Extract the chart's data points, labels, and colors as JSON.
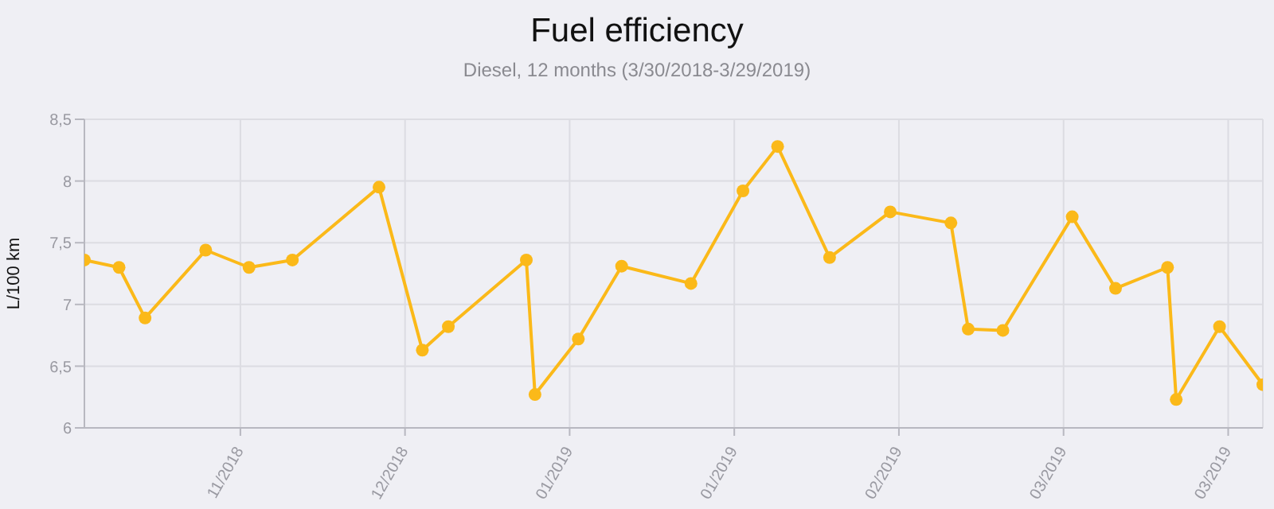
{
  "chart_data": {
    "type": "line",
    "title": "Fuel efficiency",
    "subtitle": "Diesel, 12 months (3/30/2018-3/29/2019)",
    "ylabel": "L/100 km",
    "x": [
      "2018-11-12",
      "2018-11-16",
      "2018-11-19",
      "2018-11-26",
      "2018-12-01",
      "2018-12-06",
      "2018-12-16",
      "2018-12-21",
      "2018-12-24",
      "2019-01-02",
      "2019-01-03",
      "2019-01-08",
      "2019-01-13",
      "2019-01-21",
      "2019-01-27",
      "2019-01-31",
      "2019-02-06",
      "2019-02-13",
      "2019-02-20",
      "2019-02-22",
      "2019-02-26",
      "2019-03-06",
      "2019-03-11",
      "2019-03-17",
      "2019-03-18",
      "2019-03-23",
      "2019-03-28"
    ],
    "series": [
      {
        "color": "#fbb919",
        "values": [
          7.36,
          7.3,
          6.89,
          7.44,
          7.3,
          7.36,
          7.95,
          6.63,
          6.82,
          7.36,
          6.27,
          6.72,
          7.31,
          7.17,
          7.92,
          8.28,
          7.38,
          7.75,
          7.66,
          6.8,
          6.79,
          7.71,
          7.13,
          7.3,
          6.23,
          6.82,
          6.35
        ]
      }
    ],
    "xlim": [
      "2018-11-12",
      "2019-03-28"
    ],
    "xticks": [
      {
        "value": "2018-11-30",
        "label": "11/2018"
      },
      {
        "value": "2018-12-19",
        "label": "12/2018"
      },
      {
        "value": "2019-01-07",
        "label": "01/2019"
      },
      {
        "value": "2019-01-26",
        "label": "01/2019"
      },
      {
        "value": "2019-02-14",
        "label": "02/2019"
      },
      {
        "value": "2019-03-05",
        "label": "03/2019"
      },
      {
        "value": "2019-03-24",
        "label": "03/2019"
      }
    ],
    "ylim": [
      6,
      8.5
    ],
    "yticks": [
      6,
      {
        "value": 6.5,
        "label": "6,5"
      },
      7,
      {
        "value": 7.5,
        "label": "7,5"
      },
      8,
      {
        "value": 8.5,
        "label": "8,5"
      }
    ],
    "grid": true,
    "marker": "circle",
    "line_style": "solid"
  }
}
